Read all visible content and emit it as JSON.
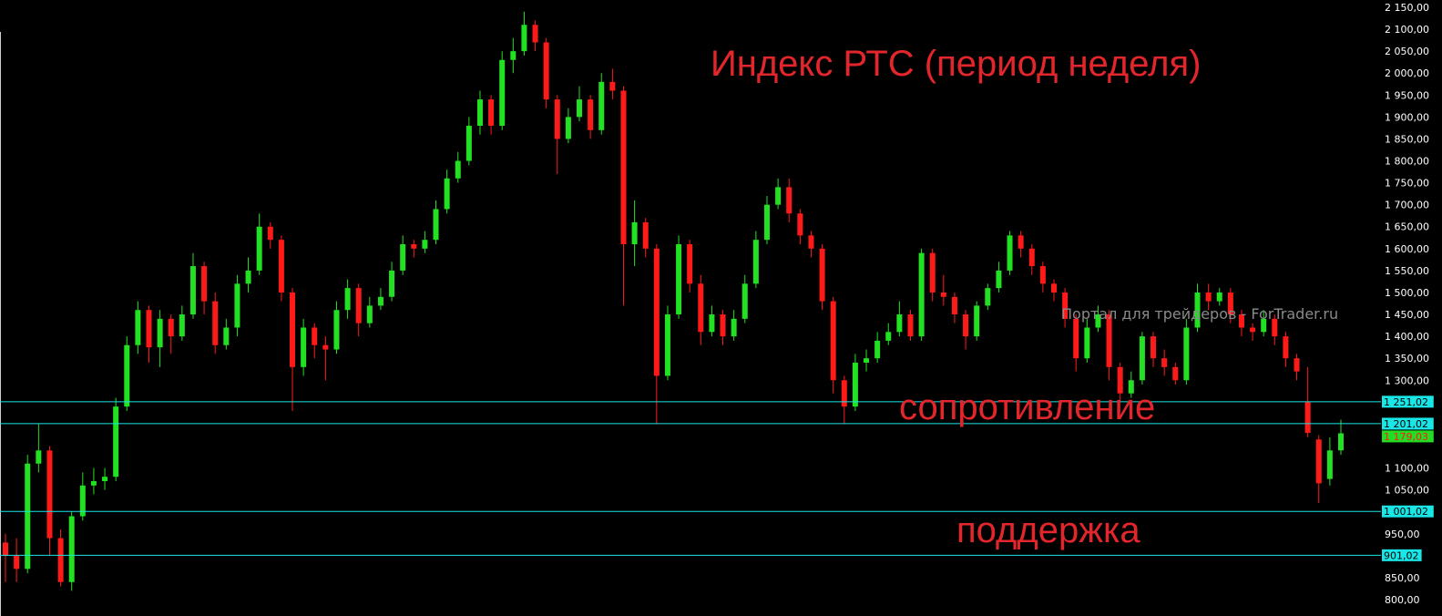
{
  "chart_data": {
    "type": "candlestick",
    "title": "Индекс РТС (период неделя)",
    "ylim": [
      800,
      2150
    ],
    "y_tick_step": 50,
    "grid": false,
    "colors": {
      "background": "#000000",
      "up": "#22e022",
      "down": "#ff1a1a",
      "level_line": "#19e6e6",
      "axis_text": "#ffffff",
      "current_price_box": "#22dd22",
      "current_price_text": "#ff1a1a",
      "title": "#e3262b"
    },
    "levels": [
      {
        "value": 1251.02,
        "label": "1 251,02"
      },
      {
        "value": 1201.02,
        "label": "1 201,02"
      },
      {
        "value": 1001.02,
        "label": "1 001,02"
      },
      {
        "value": 901.02,
        "label": "901,02"
      }
    ],
    "current_price": {
      "value": 1179.03,
      "label": "1 179,03"
    },
    "annotations": {
      "resistance": "сопротивление",
      "support": "поддержка"
    },
    "watermark": "Портал для трейдеров - ForTrader.ru",
    "ohlc": [
      [
        930,
        950,
        840,
        900
      ],
      [
        900,
        940,
        840,
        870
      ],
      [
        870,
        1130,
        860,
        1110
      ],
      [
        1110,
        1200,
        1090,
        1140
      ],
      [
        1140,
        1150,
        900,
        940
      ],
      [
        940,
        960,
        830,
        840
      ],
      [
        840,
        1000,
        820,
        990
      ],
      [
        990,
        1090,
        980,
        1060
      ],
      [
        1060,
        1100,
        1040,
        1070
      ],
      [
        1070,
        1100,
        1050,
        1080
      ],
      [
        1080,
        1260,
        1070,
        1240
      ],
      [
        1240,
        1400,
        1230,
        1380
      ],
      [
        1380,
        1480,
        1360,
        1460
      ],
      [
        1460,
        1470,
        1340,
        1375
      ],
      [
        1375,
        1460,
        1330,
        1440
      ],
      [
        1440,
        1450,
        1360,
        1400
      ],
      [
        1400,
        1470,
        1390,
        1450
      ],
      [
        1450,
        1590,
        1440,
        1560
      ],
      [
        1560,
        1570,
        1450,
        1480
      ],
      [
        1480,
        1500,
        1360,
        1380
      ],
      [
        1380,
        1440,
        1370,
        1420
      ],
      [
        1420,
        1540,
        1400,
        1520
      ],
      [
        1520,
        1580,
        1500,
        1550
      ],
      [
        1550,
        1680,
        1540,
        1650
      ],
      [
        1650,
        1660,
        1600,
        1620
      ],
      [
        1620,
        1630,
        1480,
        1500
      ],
      [
        1500,
        1510,
        1230,
        1330
      ],
      [
        1330,
        1440,
        1310,
        1420
      ],
      [
        1420,
        1430,
        1350,
        1380
      ],
      [
        1380,
        1400,
        1300,
        1370
      ],
      [
        1370,
        1480,
        1360,
        1460
      ],
      [
        1460,
        1530,
        1440,
        1510
      ],
      [
        1510,
        1520,
        1400,
        1430
      ],
      [
        1430,
        1490,
        1420,
        1470
      ],
      [
        1470,
        1510,
        1460,
        1490
      ],
      [
        1490,
        1570,
        1480,
        1550
      ],
      [
        1550,
        1630,
        1540,
        1610
      ],
      [
        1610,
        1620,
        1580,
        1600
      ],
      [
        1600,
        1640,
        1590,
        1620
      ],
      [
        1620,
        1710,
        1610,
        1690
      ],
      [
        1690,
        1780,
        1680,
        1760
      ],
      [
        1760,
        1820,
        1750,
        1800
      ],
      [
        1800,
        1900,
        1790,
        1880
      ],
      [
        1880,
        1960,
        1860,
        1940
      ],
      [
        1940,
        1950,
        1860,
        1880
      ],
      [
        1880,
        2050,
        1870,
        2030
      ],
      [
        2030,
        2080,
        2000,
        2050
      ],
      [
        2050,
        2140,
        2040,
        2110
      ],
      [
        2110,
        2120,
        2050,
        2070
      ],
      [
        2070,
        2080,
        1920,
        1940
      ],
      [
        1940,
        1950,
        1770,
        1850
      ],
      [
        1850,
        1920,
        1840,
        1900
      ],
      [
        1900,
        1970,
        1890,
        1940
      ],
      [
        1940,
        1950,
        1850,
        1870
      ],
      [
        1870,
        2000,
        1860,
        1980
      ],
      [
        1980,
        2010,
        1940,
        1960
      ],
      [
        1960,
        1970,
        1470,
        1610
      ],
      [
        1610,
        1710,
        1560,
        1660
      ],
      [
        1660,
        1670,
        1580,
        1600
      ],
      [
        1600,
        1610,
        1200,
        1310
      ],
      [
        1310,
        1470,
        1300,
        1450
      ],
      [
        1450,
        1630,
        1440,
        1610
      ],
      [
        1610,
        1620,
        1500,
        1520
      ],
      [
        1520,
        1540,
        1380,
        1410
      ],
      [
        1410,
        1470,
        1400,
        1450
      ],
      [
        1450,
        1460,
        1380,
        1400
      ],
      [
        1400,
        1460,
        1390,
        1440
      ],
      [
        1440,
        1540,
        1430,
        1520
      ],
      [
        1520,
        1640,
        1510,
        1620
      ],
      [
        1620,
        1720,
        1610,
        1700
      ],
      [
        1700,
        1760,
        1690,
        1740
      ],
      [
        1740,
        1760,
        1660,
        1680
      ],
      [
        1680,
        1690,
        1610,
        1630
      ],
      [
        1630,
        1640,
        1580,
        1600
      ],
      [
        1600,
        1610,
        1460,
        1480
      ],
      [
        1480,
        1490,
        1270,
        1300
      ],
      [
        1300,
        1310,
        1200,
        1240
      ],
      [
        1240,
        1360,
        1230,
        1340
      ],
      [
        1340,
        1370,
        1320,
        1350
      ],
      [
        1350,
        1410,
        1340,
        1390
      ],
      [
        1390,
        1430,
        1380,
        1410
      ],
      [
        1410,
        1480,
        1400,
        1450
      ],
      [
        1450,
        1460,
        1390,
        1400
      ],
      [
        1400,
        1600,
        1390,
        1590
      ],
      [
        1590,
        1600,
        1480,
        1500
      ],
      [
        1500,
        1540,
        1470,
        1490
      ],
      [
        1490,
        1500,
        1430,
        1450
      ],
      [
        1450,
        1460,
        1370,
        1400
      ],
      [
        1400,
        1480,
        1390,
        1470
      ],
      [
        1470,
        1520,
        1460,
        1510
      ],
      [
        1510,
        1570,
        1500,
        1550
      ],
      [
        1550,
        1640,
        1540,
        1630
      ],
      [
        1630,
        1640,
        1580,
        1600
      ],
      [
        1600,
        1610,
        1540,
        1560
      ],
      [
        1560,
        1570,
        1500,
        1520
      ],
      [
        1520,
        1530,
        1480,
        1500
      ],
      [
        1500,
        1510,
        1420,
        1440
      ],
      [
        1440,
        1450,
        1320,
        1350
      ],
      [
        1350,
        1440,
        1340,
        1420
      ],
      [
        1420,
        1470,
        1410,
        1450
      ],
      [
        1450,
        1460,
        1300,
        1330
      ],
      [
        1330,
        1340,
        1250,
        1270
      ],
      [
        1270,
        1320,
        1260,
        1300
      ],
      [
        1300,
        1410,
        1290,
        1400
      ],
      [
        1400,
        1410,
        1330,
        1350
      ],
      [
        1350,
        1370,
        1310,
        1330
      ],
      [
        1330,
        1340,
        1290,
        1300
      ],
      [
        1300,
        1440,
        1290,
        1420
      ],
      [
        1420,
        1520,
        1410,
        1500
      ],
      [
        1500,
        1520,
        1460,
        1480
      ],
      [
        1480,
        1510,
        1470,
        1500
      ],
      [
        1500,
        1510,
        1430,
        1450
      ],
      [
        1450,
        1460,
        1400,
        1420
      ],
      [
        1420,
        1430,
        1390,
        1410
      ],
      [
        1410,
        1460,
        1400,
        1440
      ],
      [
        1440,
        1450,
        1380,
        1400
      ],
      [
        1400,
        1410,
        1330,
        1350
      ],
      [
        1350,
        1360,
        1300,
        1320
      ],
      [
        1250,
        1330,
        1170,
        1180
      ],
      [
        1165,
        1175,
        1020,
        1065
      ],
      [
        1075,
        1170,
        1060,
        1140
      ],
      [
        1140,
        1210,
        1130,
        1179.03
      ]
    ]
  }
}
